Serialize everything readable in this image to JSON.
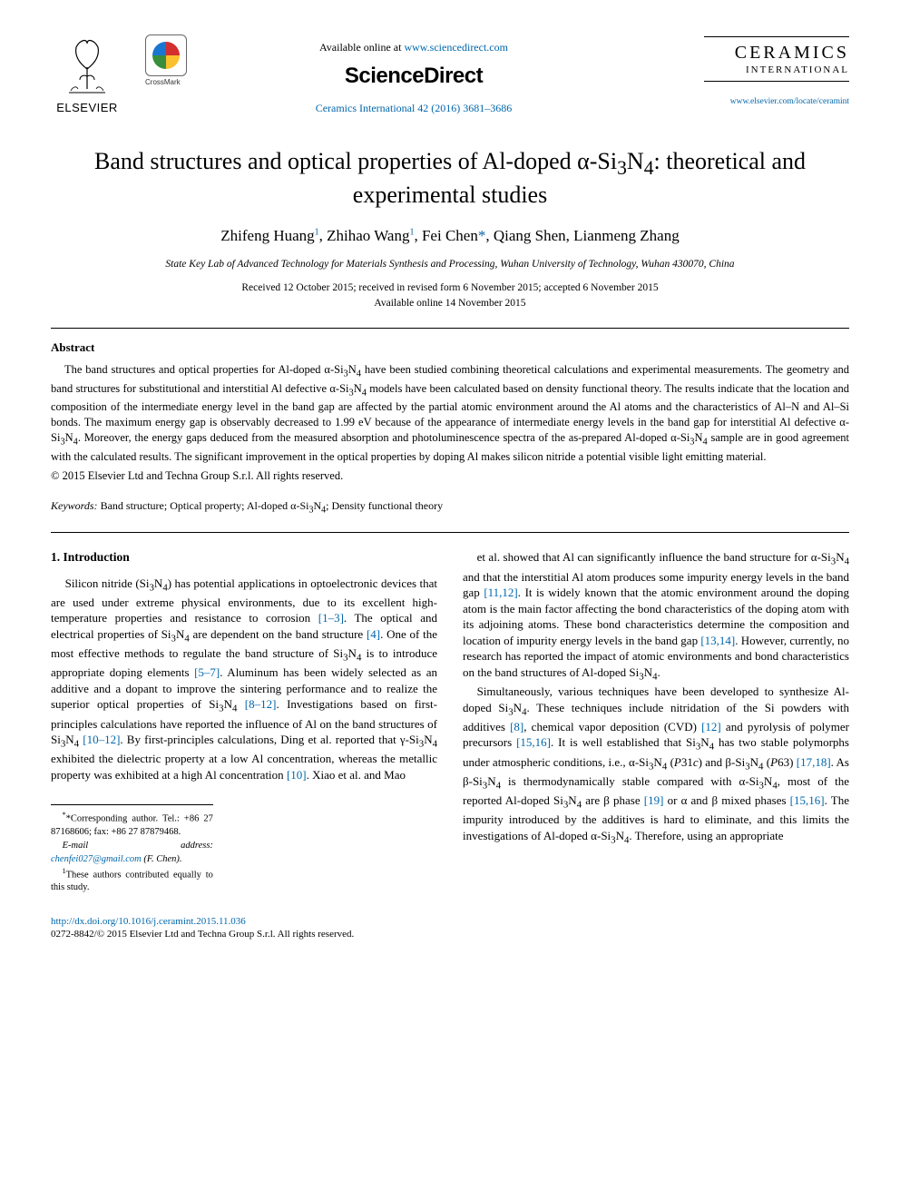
{
  "header": {
    "publisher_name": "ELSEVIER",
    "crossmark_label": "CrossMark",
    "available_prefix": "Available online at ",
    "available_url": "www.sciencedirect.com",
    "science_direct": "ScienceDirect",
    "journal_cite": "Ceramics International 42 (2016) 3681–3686",
    "journal_logo_main": "CERAMICS",
    "journal_logo_sub": "INTERNATIONAL",
    "journal_url": "www.elsevier.com/locate/ceramint"
  },
  "article": {
    "title_html": "Band structures and optical properties of Al-doped α-Si<sub>3</sub>N<sub>4</sub>: theoretical and experimental studies",
    "authors_html": "Zhifeng Huang<sup>1</sup>, Zhihao Wang<sup>1</sup>, Fei Chen<span class='star'>*</span>, Qiang Shen, Lianmeng Zhang",
    "affiliation": "State Key Lab of Advanced Technology for Materials Synthesis and Processing, Wuhan University of Technology, Wuhan 430070, China",
    "dates": "Received 12 October 2015; received in revised form 6 November 2015; accepted 6 November 2015",
    "online_date": "Available online 14 November 2015"
  },
  "abstract": {
    "heading": "Abstract",
    "body_html": "The band structures and optical properties for Al-doped α-Si<sub>3</sub>N<sub>4</sub> have been studied combining theoretical calculations and experimental measurements. The geometry and band structures for substitutional and interstitial Al defective α-Si<sub>3</sub>N<sub>4</sub> models have been calculated based on density functional theory. The results indicate that the location and composition of the intermediate energy level in the band gap are affected by the partial atomic environment around the Al atoms and the characteristics of Al–N and Al–Si bonds. The maximum energy gap is observably decreased to 1.99 eV because of the appearance of intermediate energy levels in the band gap for interstitial Al defective α-Si<sub>3</sub>N<sub>4</sub>. Moreover, the energy gaps deduced from the measured absorption and photoluminescence spectra of the as-prepared Al-doped α-Si<sub>3</sub>N<sub>4</sub> sample are in good agreement with the calculated results. The significant improvement in the optical properties by doping Al makes silicon nitride a potential visible light emitting material.",
    "copyright": "© 2015 Elsevier Ltd and Techna Group S.r.l. All rights reserved."
  },
  "keywords": {
    "label": "Keywords:",
    "text_html": " Band structure; Optical property; Al-doped α-Si<sub>3</sub>N<sub>4</sub>; Density functional theory"
  },
  "section": {
    "heading": "1.  Introduction",
    "col1_html": "Silicon nitride (Si<sub>3</sub>N<sub>4</sub>) has potential applications in optoelectronic devices that are used under extreme physical environments, due to its excellent high-temperature properties and resistance to corrosion <span class='cite'>[1–3]</span>. The optical and electrical properties of Si<sub>3</sub>N<sub>4</sub> are dependent on the band structure <span class='cite'>[4]</span>. One of the most effective methods to regulate the band structure of Si<sub>3</sub>N<sub>4</sub> is to introduce appropriate doping elements <span class='cite'>[5–7]</span>. Aluminum has been widely selected as an additive and a dopant to improve the sintering performance and to realize the superior optical properties of Si<sub>3</sub>N<sub>4</sub> <span class='cite'>[8–12]</span>. Investigations based on first-principles calculations have reported the influence of Al on the band structures of Si<sub>3</sub>N<sub>4</sub> <span class='cite'>[10–12]</span>. By first-principles calculations, Ding et al. reported that γ-Si<sub>3</sub>N<sub>4</sub> exhibited the dielectric property at a low Al concentration, whereas the metallic property was exhibited at a high Al concentration <span class='cite'>[10]</span>. Xiao et al. and Mao",
    "col2_p1_html": "et al. showed that Al can significantly influence the band structure for α-Si<sub>3</sub>N<sub>4</sub> and that the interstitial Al atom produces some impurity energy levels in the band gap <span class='cite'>[11,12]</span>. It is widely known that the atomic environment around the doping atom is the main factor affecting the bond characteristics of the doping atom with its adjoining atoms. These bond characteristics determine the composition and location of impurity energy levels in the band gap <span class='cite'>[13,14]</span>. However, currently, no research has reported the impact of atomic environments and bond characteristics on the band structures of Al-doped Si<sub>3</sub>N<sub>4</sub>.",
    "col2_p2_html": "Simultaneously, various techniques have been developed to synthesize Al-doped Si<sub>3</sub>N<sub>4</sub>. These techniques include nitridation of the Si powders with additives <span class='cite'>[8]</span>, chemical vapor deposition (CVD) <span class='cite'>[12]</span> and pyrolysis of polymer precursors <span class='cite'>[15,16]</span>. It is well established that Si<sub>3</sub>N<sub>4</sub> has two stable polymorphs under atmospheric conditions, i.e., α-Si<sub>3</sub>N<sub>4</sub> (<i>P</i>31<i>c</i>) and β-Si<sub>3</sub>N<sub>4</sub> (<i>P</i>63) <span class='cite'>[17,18]</span>. As β-Si<sub>3</sub>N<sub>4</sub> is thermodynamically stable compared with α-Si<sub>3</sub>N<sub>4</sub>, most of the reported Al-doped Si<sub>3</sub>N<sub>4</sub> are β phase <span class='cite'>[19]</span> or α and β mixed phases <span class='cite'>[15,16]</span>. The impurity introduced by the additives is hard to eliminate, and this limits the investigations of Al-doped α-Si<sub>3</sub>N<sub>4</sub>. Therefore, using an appropriate"
  },
  "footnotes": {
    "corresponding": "*Corresponding author. Tel.: +86 27 87168606; fax: +86 27 87879468.",
    "email_label": "E-mail address: ",
    "email_addr": "chenfei027@gmail.com",
    "email_who": " (F. Chen).",
    "contrib": "These authors contributed equally to this study.",
    "contrib_sup": "1"
  },
  "bottom": {
    "doi": "http://dx.doi.org/10.1016/j.ceramint.2015.11.036",
    "issn_line": "0272-8842/© 2015 Elsevier Ltd and Techna Group S.r.l. All rights reserved."
  },
  "colors": {
    "link": "#0066aa",
    "text": "#000000",
    "bg": "#ffffff"
  }
}
